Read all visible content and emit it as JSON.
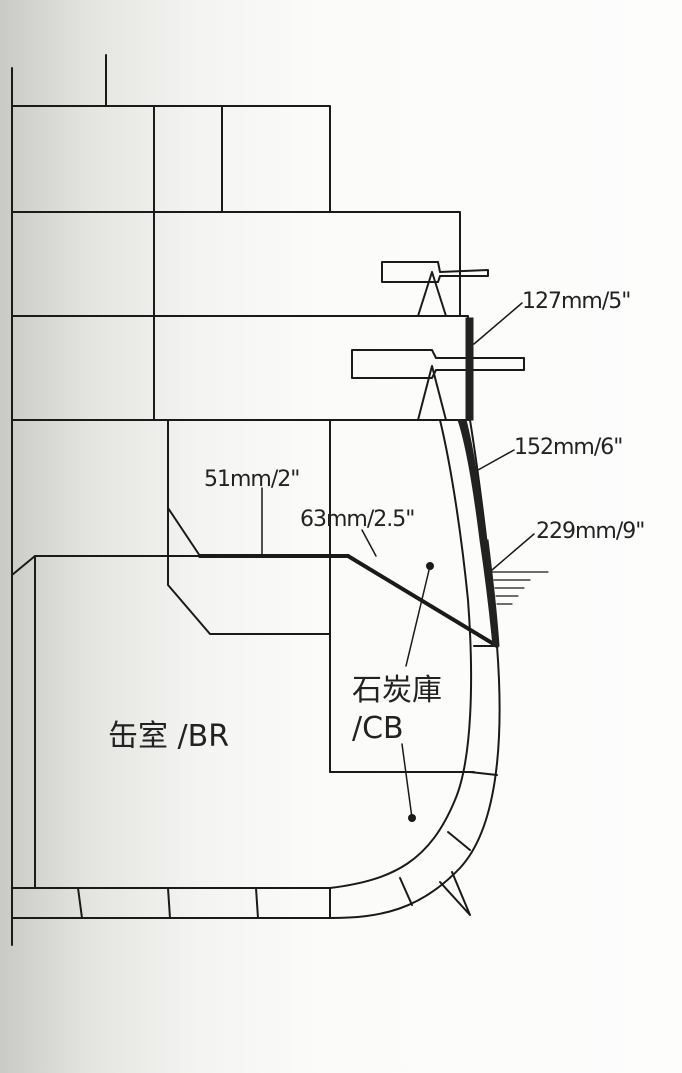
{
  "diagram": {
    "armor_labels": {
      "belt_upper": "127mm/5\"",
      "belt_mid": "152mm/6\"",
      "belt_lower": "229mm/9\"",
      "deck_flat": "51mm/2\"",
      "deck_slope": "63mm/2.5\""
    },
    "compartments": {
      "boiler_room": "缶室 /BR",
      "coal_bunker_jp": "石炭庫",
      "coal_bunker_en": "/CB"
    }
  }
}
